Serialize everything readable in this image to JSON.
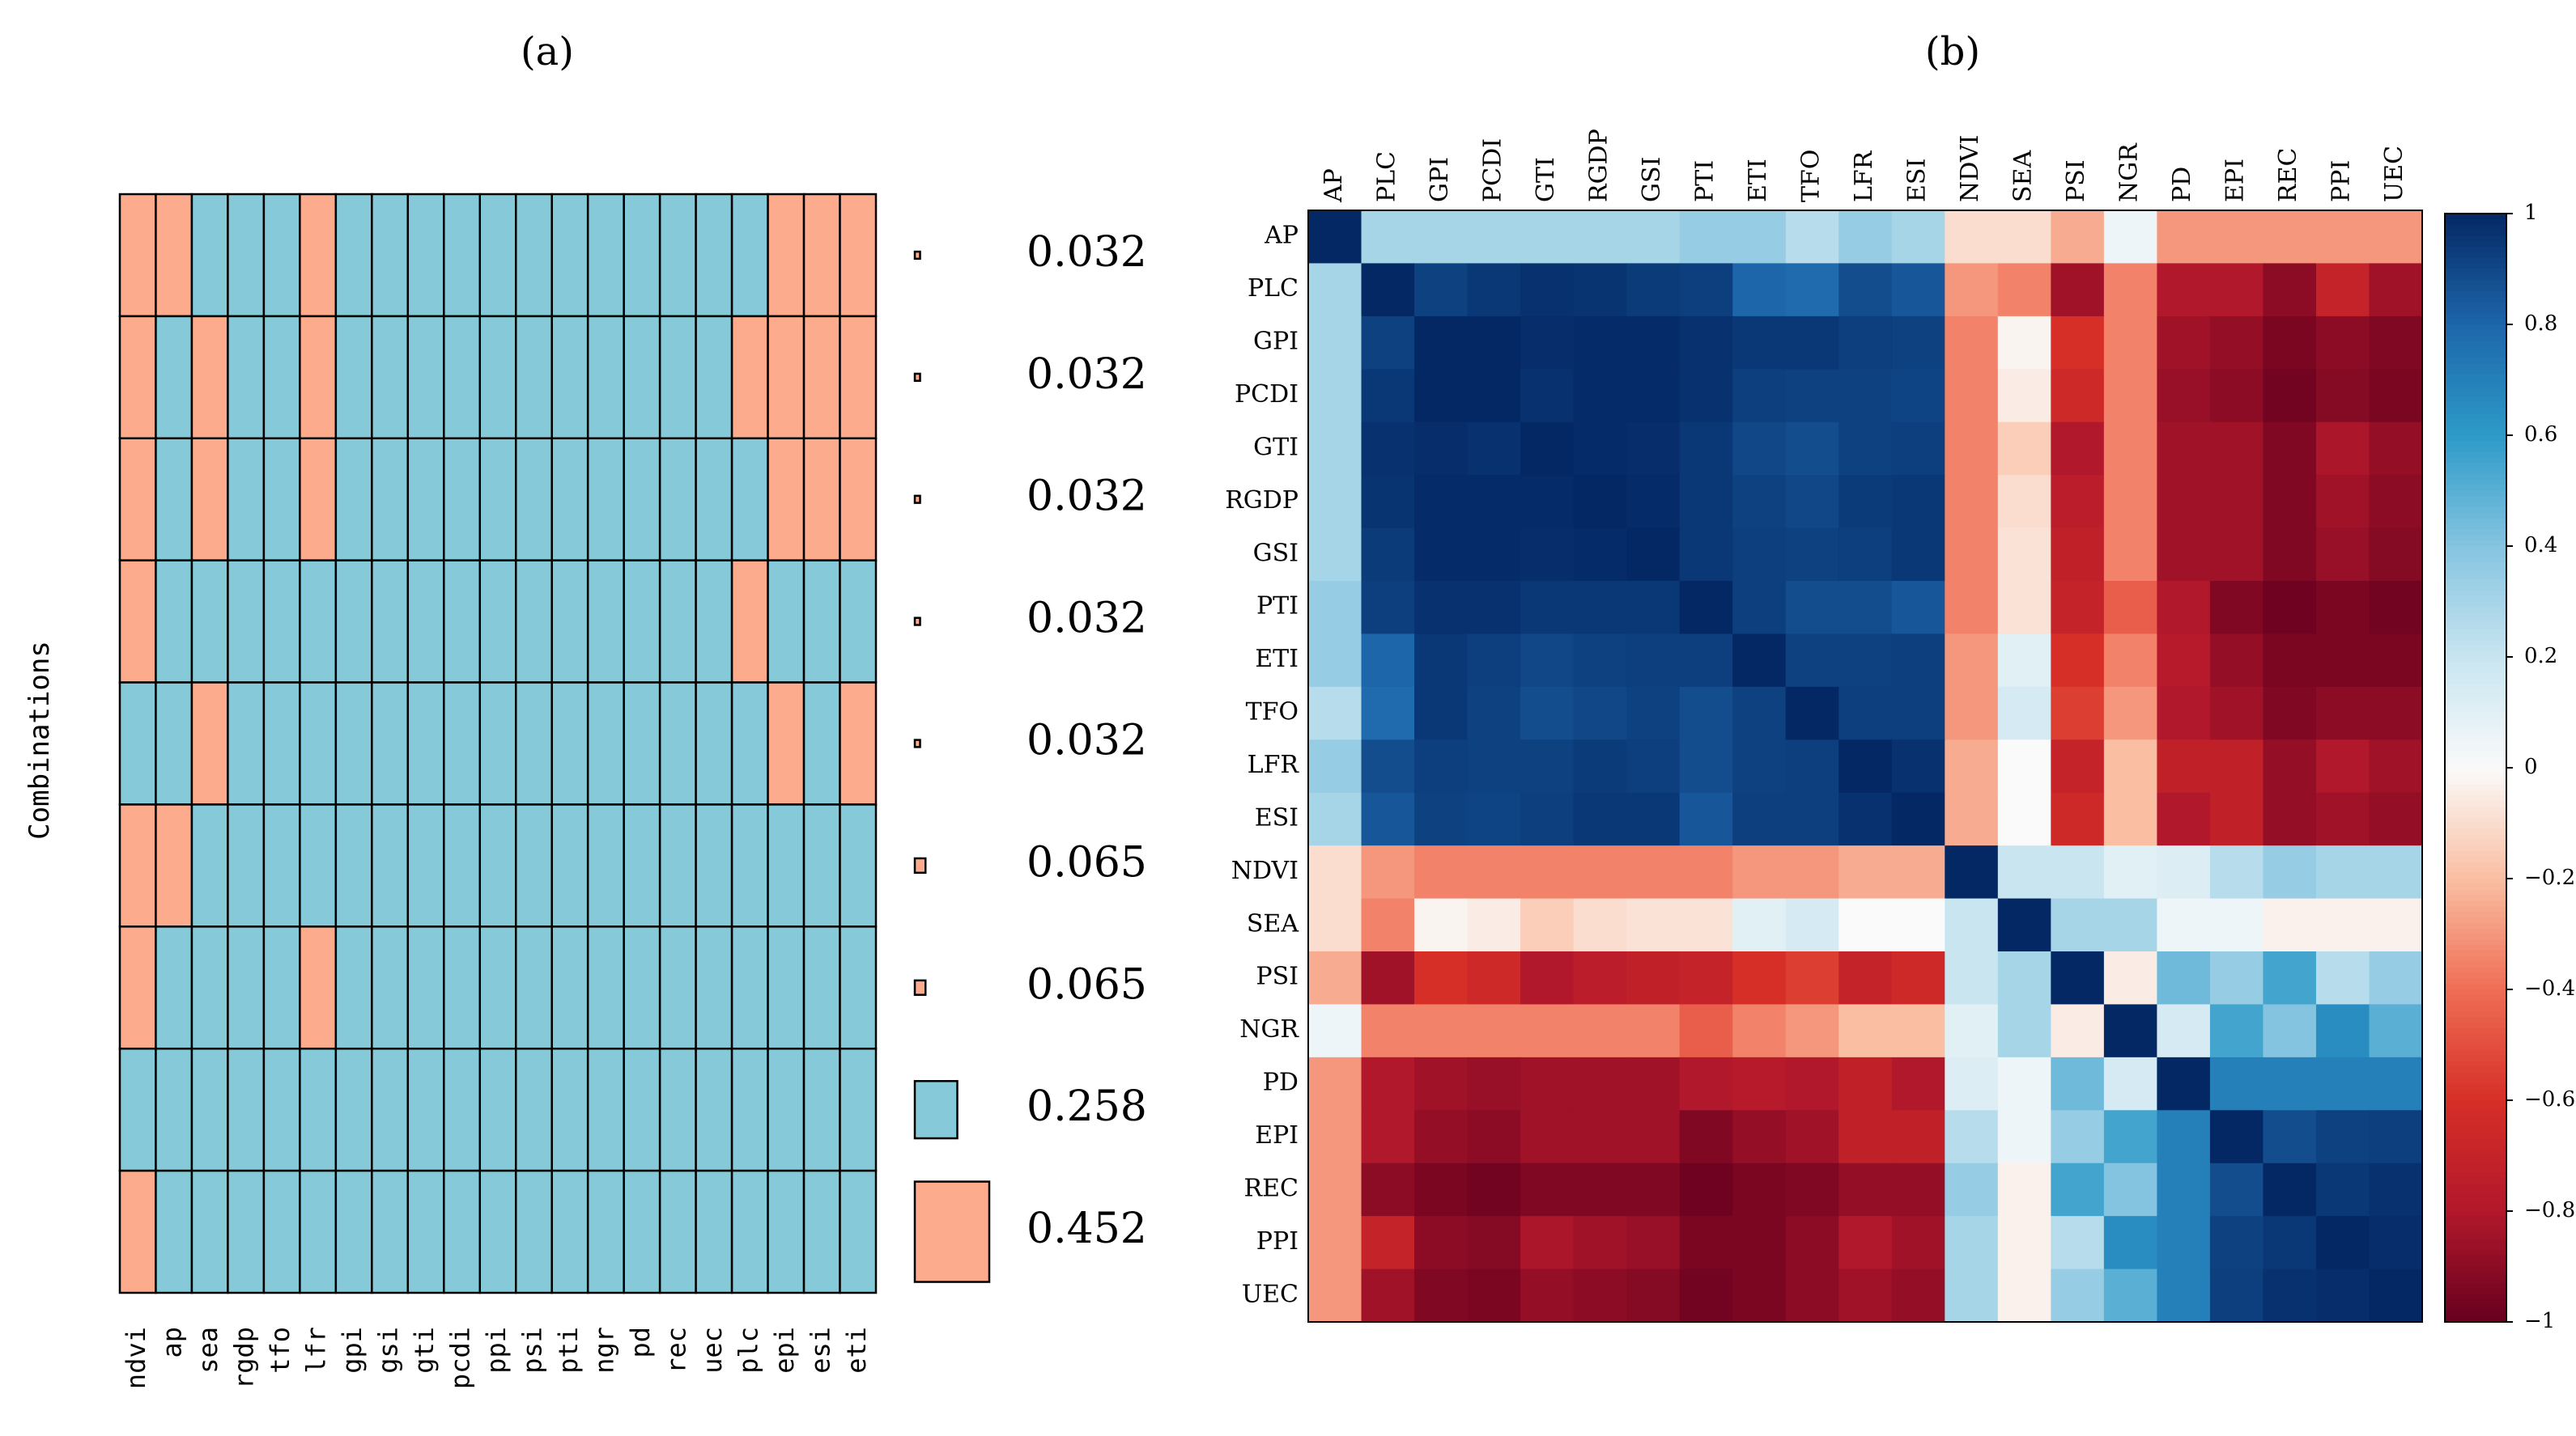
{
  "colors": {
    "teal": "#86cad9",
    "salmon": "#fcac8c",
    "cell_border": "#000000",
    "frame": "#000000"
  },
  "chart_data": [
    {
      "type": "heatmap",
      "panel_label": "(a)",
      "ylabel": "Combinations",
      "variables": [
        "ndvi",
        "ap",
        "sea",
        "rgdp",
        "tfo",
        "lfr",
        "gpi",
        "gsi",
        "gti",
        "pcdi",
        "ppi",
        "psi",
        "pti",
        "ngr",
        "pd",
        "rec",
        "uec",
        "plc",
        "epi",
        "esi",
        "eti"
      ],
      "combinations": [
        {
          "selected": [
            "ndvi",
            "ap",
            "lfr",
            "epi",
            "esi",
            "eti"
          ],
          "weight": 0.032,
          "label": "0.032"
        },
        {
          "selected": [
            "ndvi",
            "sea",
            "lfr",
            "plc",
            "epi",
            "esi",
            "eti"
          ],
          "weight": 0.032,
          "label": "0.032"
        },
        {
          "selected": [
            "ndvi",
            "sea",
            "lfr",
            "epi",
            "esi",
            "eti"
          ],
          "weight": 0.032,
          "label": "0.032"
        },
        {
          "selected": [
            "ndvi",
            "plc"
          ],
          "weight": 0.032,
          "label": "0.032"
        },
        {
          "selected": [
            "sea",
            "epi",
            "eti"
          ],
          "weight": 0.032,
          "label": "0.032"
        },
        {
          "selected": [
            "ndvi",
            "ap"
          ],
          "weight": 0.065,
          "label": "0.065"
        },
        {
          "selected": [
            "ndvi",
            "lfr"
          ],
          "weight": 0.065,
          "label": "0.065"
        },
        {
          "selected": [],
          "weight": 0.258,
          "label": "0.258"
        },
        {
          "selected": [
            "ndvi"
          ],
          "weight": 0.452,
          "label": "0.452"
        }
      ]
    },
    {
      "type": "heatmap",
      "panel_label": "(b)",
      "variables": [
        "AP",
        "PLC",
        "GPI",
        "PCDI",
        "GTI",
        "RGDP",
        "GSI",
        "PTI",
        "ETI",
        "TFO",
        "LFR",
        "ESI",
        "NDVI",
        "SEA",
        "PSI",
        "NGR",
        "PD",
        "EPI",
        "REC",
        "PPI",
        "UEC"
      ],
      "colorbar": {
        "range": [
          -1,
          1
        ],
        "ticks": [
          {
            "value": 1,
            "label": "1"
          },
          {
            "value": 0.8,
            "label": "0.8"
          },
          {
            "value": 0.6,
            "label": "0.6"
          },
          {
            "value": 0.4,
            "label": "0.4"
          },
          {
            "value": 0.2,
            "label": "0.2"
          },
          {
            "value": 0,
            "label": "0"
          },
          {
            "value": -0.2,
            "label": "−0.2"
          },
          {
            "value": -0.4,
            "label": "−0.4"
          },
          {
            "value": -0.6,
            "label": "−0.6"
          },
          {
            "value": -0.8,
            "label": "−0.8"
          },
          {
            "value": -1,
            "label": "−1"
          }
        ]
      },
      "matrix": [
        [
          1.0,
          0.3,
          0.3,
          0.3,
          0.3,
          0.3,
          0.3,
          0.35,
          0.35,
          0.25,
          0.35,
          0.3,
          -0.1,
          -0.1,
          -0.25,
          0.05,
          -0.3,
          -0.3,
          -0.3,
          -0.3,
          -0.3
        ],
        [
          0.3,
          1.0,
          0.92,
          0.95,
          0.97,
          0.96,
          0.94,
          0.93,
          0.8,
          0.78,
          0.88,
          0.85,
          -0.3,
          -0.35,
          -0.85,
          -0.35,
          -0.8,
          -0.8,
          -0.9,
          -0.7,
          -0.85
        ],
        [
          0.3,
          0.92,
          1.0,
          1.0,
          0.98,
          0.99,
          0.99,
          0.97,
          0.95,
          0.95,
          0.93,
          0.92,
          -0.35,
          -0.02,
          -0.6,
          -0.35,
          -0.85,
          -0.88,
          -0.95,
          -0.9,
          -0.93
        ],
        [
          0.3,
          0.95,
          1.0,
          1.0,
          0.97,
          0.99,
          0.99,
          0.97,
          0.93,
          0.92,
          0.92,
          0.91,
          -0.35,
          -0.05,
          -0.65,
          -0.35,
          -0.87,
          -0.9,
          -0.97,
          -0.92,
          -0.95
        ],
        [
          0.3,
          0.97,
          0.98,
          0.97,
          1.0,
          0.99,
          0.98,
          0.95,
          0.9,
          0.88,
          0.92,
          0.93,
          -0.35,
          -0.15,
          -0.8,
          -0.35,
          -0.85,
          -0.85,
          -0.93,
          -0.82,
          -0.88
        ],
        [
          0.3,
          0.96,
          0.99,
          0.99,
          0.99,
          1.0,
          0.99,
          0.95,
          0.92,
          0.9,
          0.94,
          0.95,
          -0.35,
          -0.1,
          -0.75,
          -0.35,
          -0.85,
          -0.85,
          -0.93,
          -0.85,
          -0.9
        ],
        [
          0.3,
          0.94,
          0.99,
          0.99,
          0.98,
          0.99,
          1.0,
          0.95,
          0.93,
          0.92,
          0.93,
          0.95,
          -0.35,
          -0.08,
          -0.72,
          -0.35,
          -0.85,
          -0.85,
          -0.93,
          -0.87,
          -0.92
        ],
        [
          0.35,
          0.93,
          0.97,
          0.97,
          0.95,
          0.95,
          0.95,
          1.0,
          0.93,
          0.88,
          0.88,
          0.85,
          -0.35,
          -0.08,
          -0.7,
          -0.45,
          -0.8,
          -0.93,
          -0.98,
          -0.95,
          -0.97
        ],
        [
          0.35,
          0.8,
          0.95,
          0.93,
          0.9,
          0.92,
          0.93,
          0.93,
          1.0,
          0.92,
          0.92,
          0.93,
          -0.3,
          0.1,
          -0.6,
          -0.35,
          -0.78,
          -0.88,
          -0.95,
          -0.95,
          -0.95
        ],
        [
          0.25,
          0.78,
          0.95,
          0.92,
          0.88,
          0.9,
          0.92,
          0.88,
          0.92,
          1.0,
          0.93,
          0.93,
          -0.3,
          0.15,
          -0.55,
          -0.3,
          -0.8,
          -0.85,
          -0.93,
          -0.9,
          -0.9
        ],
        [
          0.35,
          0.88,
          0.93,
          0.92,
          0.92,
          0.94,
          0.93,
          0.88,
          0.92,
          0.93,
          1.0,
          0.97,
          -0.25,
          0.0,
          -0.7,
          -0.2,
          -0.72,
          -0.72,
          -0.88,
          -0.8,
          -0.85
        ],
        [
          0.3,
          0.85,
          0.92,
          0.91,
          0.93,
          0.95,
          0.95,
          0.85,
          0.93,
          0.93,
          0.97,
          1.0,
          -0.25,
          0.0,
          -0.65,
          -0.2,
          -0.8,
          -0.72,
          -0.88,
          -0.85,
          -0.88
        ],
        [
          -0.1,
          -0.3,
          -0.35,
          -0.35,
          -0.35,
          -0.35,
          -0.35,
          -0.35,
          -0.3,
          -0.3,
          -0.25,
          -0.25,
          1.0,
          0.2,
          0.2,
          0.1,
          0.12,
          0.25,
          0.35,
          0.3,
          0.3
        ],
        [
          -0.1,
          -0.35,
          -0.02,
          -0.05,
          -0.15,
          -0.1,
          -0.08,
          -0.08,
          0.1,
          0.15,
          0.0,
          0.0,
          0.2,
          1.0,
          0.3,
          0.3,
          0.05,
          0.05,
          -0.03,
          -0.03,
          -0.03
        ],
        [
          -0.25,
          -0.85,
          -0.6,
          -0.65,
          -0.8,
          -0.75,
          -0.72,
          -0.7,
          -0.6,
          -0.55,
          -0.7,
          -0.65,
          0.2,
          0.3,
          1.0,
          -0.05,
          0.45,
          0.35,
          0.55,
          0.25,
          0.35
        ],
        [
          0.05,
          -0.35,
          -0.35,
          -0.35,
          -0.35,
          -0.35,
          -0.35,
          -0.45,
          -0.35,
          -0.3,
          -0.2,
          -0.2,
          0.1,
          0.3,
          -0.05,
          1.0,
          0.15,
          0.55,
          0.4,
          0.65,
          0.5
        ],
        [
          -0.3,
          -0.8,
          -0.85,
          -0.87,
          -0.85,
          -0.85,
          -0.85,
          -0.8,
          -0.78,
          -0.8,
          -0.72,
          -0.8,
          0.12,
          0.05,
          0.45,
          0.15,
          1.0,
          0.7,
          0.7,
          0.7,
          0.7
        ],
        [
          -0.3,
          -0.8,
          -0.88,
          -0.9,
          -0.85,
          -0.85,
          -0.85,
          -0.93,
          -0.88,
          -0.85,
          -0.72,
          -0.72,
          0.25,
          0.05,
          0.35,
          0.55,
          0.7,
          1.0,
          0.88,
          0.92,
          0.93
        ],
        [
          -0.3,
          -0.9,
          -0.95,
          -0.97,
          -0.93,
          -0.93,
          -0.93,
          -0.98,
          -0.95,
          -0.93,
          -0.88,
          -0.88,
          0.35,
          -0.03,
          0.55,
          0.4,
          0.7,
          0.88,
          1.0,
          0.95,
          0.97
        ],
        [
          -0.3,
          -0.7,
          -0.9,
          -0.92,
          -0.82,
          -0.85,
          -0.87,
          -0.95,
          -0.95,
          -0.9,
          -0.8,
          -0.85,
          0.3,
          -0.03,
          0.25,
          0.65,
          0.7,
          0.92,
          0.95,
          1.0,
          0.98
        ],
        [
          -0.3,
          -0.85,
          -0.93,
          -0.95,
          -0.88,
          -0.9,
          -0.92,
          -0.97,
          -0.95,
          -0.9,
          -0.85,
          -0.88,
          0.3,
          -0.03,
          0.35,
          0.5,
          0.7,
          0.93,
          0.97,
          0.98,
          1.0
        ]
      ]
    }
  ]
}
